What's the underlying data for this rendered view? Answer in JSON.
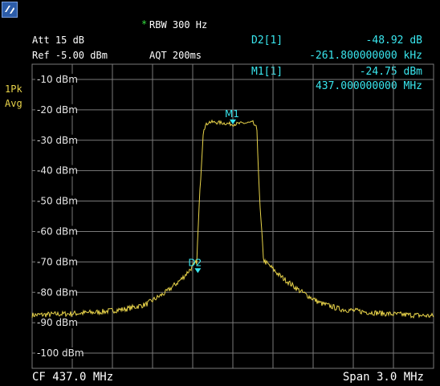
{
  "header": {
    "rbw_marker": "*",
    "rbw": "RBW 300 Hz",
    "att": "Att  15 dB",
    "ref": "Ref  -5.00 dBm",
    "aqt": "AQT 200ms"
  },
  "side": {
    "trace_mode_1": "1Pk",
    "trace_mode_2": "Avg"
  },
  "markers": {
    "d2_label": "D2[1]",
    "d2_value": "-48.92 dB",
    "d2_freq": "-261.800000000 kHz",
    "m1_label": "M1[1]",
    "m1_value": "-24.75 dBm",
    "m1_freq": "437.000000000 MHz",
    "m1_tag": "M1",
    "d2_tag": "D2"
  },
  "footer": {
    "cf": "CF 437.0 MHz",
    "span": "Span 3.0 MHz"
  },
  "colors": {
    "trace": "#e9d44a",
    "marker": "#39e6ee",
    "grid": "#7a7a7a",
    "text": "#ffffff"
  },
  "chart_data": {
    "type": "line",
    "title": "",
    "xlabel": "",
    "ylabel": "",
    "center_mhz": 437.0,
    "span_mhz": 3.0,
    "xlim": [
      435.5,
      438.5
    ],
    "ylim": [
      -105,
      -5
    ],
    "yticks": [
      -10,
      -20,
      -30,
      -40,
      -50,
      -60,
      -70,
      -80,
      -90,
      -100
    ],
    "ytick_labels": [
      "-10 dBm",
      "-20 dBm",
      "-30 dBm",
      "-40 dBm",
      "-50 dBm",
      "-60 dBm",
      "-70 dBm",
      "-80 dBm",
      "-90 dBm",
      "-100 dBm"
    ],
    "grid": true,
    "series": [
      {
        "x": [
          435.5,
          435.8,
          436.0,
          436.2,
          436.35,
          436.5,
          436.62,
          436.7,
          436.73,
          436.75,
          436.78,
          436.82,
          436.9,
          437.0,
          437.1,
          437.15,
          437.18,
          437.2,
          437.23,
          437.28,
          437.35,
          437.5,
          437.65,
          437.8,
          438.0,
          438.2,
          438.5
        ],
        "y": [
          -87.5,
          -87.0,
          -86.5,
          -85.5,
          -84.0,
          -80.0,
          -75.5,
          -71.5,
          -70.0,
          -50.0,
          -26.0,
          -24.0,
          -24.2,
          -24.75,
          -24.3,
          -24.2,
          -26.5,
          -50.0,
          -69.5,
          -71.5,
          -74.5,
          -79.5,
          -83.5,
          -85.5,
          -86.5,
          -87.2,
          -87.8
        ]
      }
    ],
    "markers": [
      {
        "name": "M1",
        "x": 437.0,
        "y": -24.75
      },
      {
        "name": "D2",
        "x": 436.7382,
        "y": -73.67
      }
    ]
  }
}
